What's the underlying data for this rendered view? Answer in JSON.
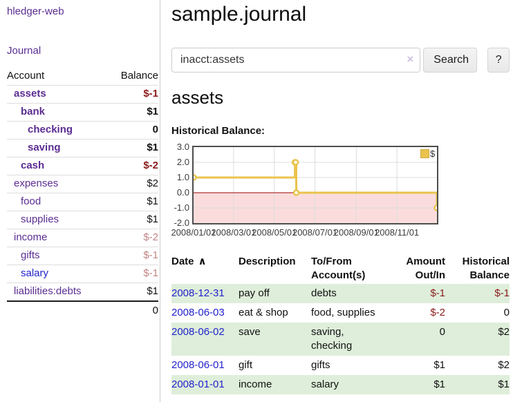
{
  "colors": {
    "link_purple": "#5b2d91",
    "link_blue": "#2222cc",
    "negative_strong": "#8b1c1c",
    "negative_muted": "#c28484",
    "row_stripe_green": "#deeeda",
    "series_gold": "#e9c34c",
    "negative_region_pink": "#fbdcdc",
    "zero_line_red": "#990000",
    "grid_gray": "#dcdcdc",
    "plot_border": "#4d4d4d"
  },
  "sidebar": {
    "app_title": "hledger-web",
    "nav": {
      "journal": "Journal"
    },
    "accounts": {
      "headers": {
        "account": "Account",
        "balance": "Balance"
      },
      "rows": [
        {
          "name": "assets",
          "balance": "$-1",
          "indent": 1,
          "bold": true,
          "name_style": "purple",
          "balance_style": "neg-strong"
        },
        {
          "name": "bank",
          "balance": "$1",
          "indent": 2,
          "bold": true,
          "name_style": "purple",
          "balance_style": ""
        },
        {
          "name": "checking",
          "balance": "0",
          "indent": 3,
          "bold": true,
          "name_style": "purple",
          "balance_style": ""
        },
        {
          "name": "saving",
          "balance": "$1",
          "indent": 3,
          "bold": true,
          "name_style": "purple",
          "balance_style": ""
        },
        {
          "name": "cash",
          "balance": "$-2",
          "indent": 2,
          "bold": true,
          "name_style": "purple",
          "balance_style": "neg-strong"
        },
        {
          "name": "expenses",
          "balance": "$2",
          "indent": 1,
          "bold": false,
          "name_style": "purple",
          "balance_style": ""
        },
        {
          "name": "food",
          "balance": "$1",
          "indent": 2,
          "bold": false,
          "name_style": "purple",
          "balance_style": ""
        },
        {
          "name": "supplies",
          "balance": "$1",
          "indent": 2,
          "bold": false,
          "name_style": "purple",
          "balance_style": ""
        },
        {
          "name": "income",
          "balance": "$-2",
          "indent": 1,
          "bold": false,
          "name_style": "purple",
          "balance_style": "neg-muted"
        },
        {
          "name": "gifts",
          "balance": "$-1",
          "indent": 2,
          "bold": false,
          "name_style": "purple",
          "balance_style": "neg-muted"
        },
        {
          "name": "salary",
          "balance": "$-1",
          "indent": 2,
          "bold": false,
          "name_style": "blue",
          "balance_style": "neg-muted"
        },
        {
          "name": "liabilities:debts",
          "balance": "$1",
          "indent": 1,
          "bold": false,
          "name_style": "purple",
          "balance_style": ""
        }
      ],
      "total": "0"
    }
  },
  "main": {
    "title": "sample.journal",
    "search": {
      "value": "inacct:assets",
      "clear_icon": "×",
      "search_button": "Search",
      "help_button": "?"
    },
    "account_heading": "assets",
    "chart_label": "Historical Balance:"
  },
  "chart_data": {
    "type": "line",
    "title": "Historical Balance:",
    "step": true,
    "grid": true,
    "xlim": [
      "2008-01-01",
      "2008-12-31"
    ],
    "ylim": [
      -2,
      3
    ],
    "series": [
      {
        "name": "$",
        "color": "#e9c34c",
        "points": [
          [
            "2008-01-01",
            1
          ],
          [
            "2008-06-01",
            2
          ],
          [
            "2008-06-02",
            2
          ],
          [
            "2008-06-03",
            0
          ],
          [
            "2008-12-31",
            -1
          ]
        ]
      }
    ],
    "y_ticks": [
      {
        "v": 3,
        "label": "3.0"
      },
      {
        "v": 2,
        "label": "2.0"
      },
      {
        "v": 1,
        "label": "1.0"
      },
      {
        "v": 0,
        "label": "0.0"
      },
      {
        "v": -1,
        "label": "-1.0"
      },
      {
        "v": -2,
        "label": "-2.0"
      }
    ],
    "x_ticks": [
      {
        "date": "2008-01-01",
        "label": "2008/01/01"
      },
      {
        "date": "2008-03-01",
        "label": "2008/03/01"
      },
      {
        "date": "2008-05-01",
        "label": "2008/05/01"
      },
      {
        "date": "2008-07-01",
        "label": "2008/07/01"
      },
      {
        "date": "2008-09-01",
        "label": "2008/09/01"
      },
      {
        "date": "2008-11-01",
        "label": "2008/11/01"
      }
    ],
    "legend": {
      "label": "$",
      "position": "top-right"
    },
    "negative_region": true,
    "zero_line": true
  },
  "register": {
    "headers": {
      "date": "Date",
      "description": "Description",
      "accounts": "To/From Account(s)",
      "amount": "Amount Out/In",
      "balance": "Historical Balance"
    },
    "sort_icon": "∧",
    "rows": [
      {
        "date": "2008-12-31",
        "description": "pay off",
        "accounts": "debts",
        "amount": "$-1",
        "balance": "$-1",
        "amount_style": "neg-strong",
        "balance_style": "neg-strong",
        "stripe": true
      },
      {
        "date": "2008-06-03",
        "description": "eat & shop",
        "accounts": "food, supplies",
        "amount": "$-2",
        "balance": "0",
        "amount_style": "neg-strong",
        "balance_style": "",
        "stripe": false
      },
      {
        "date": "2008-06-02",
        "description": "save",
        "accounts": "saving, checking",
        "amount": "0",
        "balance": "$2",
        "amount_style": "",
        "balance_style": "",
        "stripe": true
      },
      {
        "date": "2008-06-01",
        "description": "gift",
        "accounts": "gifts",
        "amount": "$1",
        "balance": "$2",
        "amount_style": "",
        "balance_style": "",
        "stripe": false
      },
      {
        "date": "2008-01-01",
        "description": "income",
        "accounts": "salary",
        "amount": "$1",
        "balance": "$1",
        "amount_style": "",
        "balance_style": "",
        "stripe": true
      }
    ]
  }
}
